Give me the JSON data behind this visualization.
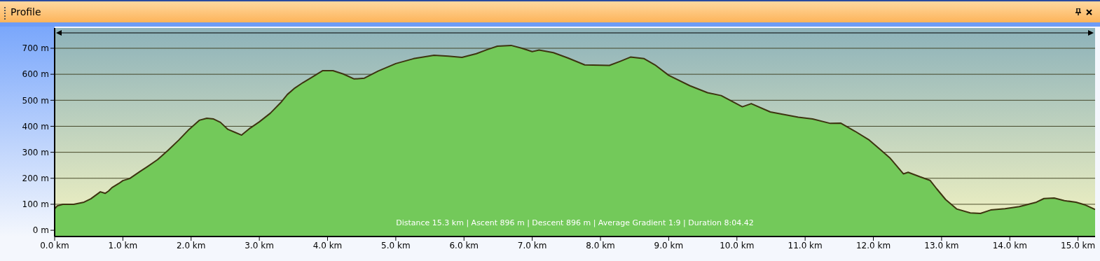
{
  "chart_data": {
    "type": "area",
    "title": "Profile",
    "annotations": [
      "Distance 15.3 km | Ascent 896 m | Descent 896 m | Average Gradient 1:9 | Duration 8:04.42"
    ],
    "x": [
      0,
      0.04,
      0.12,
      0.28,
      0.43,
      0.53,
      0.67,
      0.74,
      0.79,
      0.84,
      0.94,
      1.0,
      1.1,
      1.25,
      1.36,
      1.51,
      1.66,
      1.82,
      1.97,
      2.12,
      2.23,
      2.33,
      2.43,
      2.54,
      2.64,
      2.74,
      2.85,
      3.0,
      3.16,
      3.31,
      3.41,
      3.52,
      3.64,
      3.78,
      3.93,
      4.08,
      4.23,
      4.39,
      4.54,
      4.74,
      5.0,
      5.26,
      5.56,
      5.77,
      5.97,
      6.18,
      6.34,
      6.49,
      6.69,
      6.85,
      7.0,
      7.1,
      7.31,
      7.52,
      7.77,
      8.13,
      8.29,
      8.44,
      8.64,
      8.8,
      9.0,
      9.31,
      9.57,
      9.77,
      10.08,
      10.21,
      10.49,
      10.9,
      11.11,
      11.37,
      11.52,
      11.73,
      11.94,
      12.09,
      12.24,
      12.44,
      12.51,
      12.68,
      12.83,
      12.93,
      13.06,
      13.22,
      13.42,
      13.57,
      13.72,
      13.93,
      14.14,
      14.39,
      14.5,
      14.65,
      14.8,
      14.97,
      15.11,
      15.25
    ],
    "series": [
      {
        "color": "#73c95a",
        "values": [
          83,
          94,
          100,
          100,
          108,
          121,
          148,
          142,
          151,
          164,
          180,
          191,
          199,
          226,
          245,
          272,
          307,
          347,
          388,
          423,
          431,
          428,
          415,
          388,
          377,
          366,
          390,
          417,
          450,
          490,
          522,
          547,
          568,
          590,
          614,
          614,
          601,
          582,
          585,
          612,
          641,
          660,
          673,
          670,
          665,
          679,
          695,
          708,
          711,
          700,
          687,
          693,
          683,
          663,
          636,
          634,
          650,
          666,
          660,
          636,
          596,
          556,
          529,
          518,
          475,
          487,
          455,
          435,
          428,
          411,
          412,
          381,
          347,
          313,
          279,
          217,
          223,
          206,
          192,
          159,
          118,
          82,
          67,
          65,
          78,
          83,
          91,
          108,
          122,
          124,
          114,
          108,
          97,
          80
        ]
      }
    ],
    "xlim": [
      0,
      15.25
    ],
    "xticks": [
      {
        "value": 0,
        "label": "0.0 km"
      },
      {
        "value": 1,
        "label": "1.0 km"
      },
      {
        "value": 2,
        "label": "2.0 km"
      },
      {
        "value": 3,
        "label": "3.0 km"
      },
      {
        "value": 4,
        "label": "4.0 km"
      },
      {
        "value": 5,
        "label": "5.0 km"
      },
      {
        "value": 6,
        "label": "6.0 km"
      },
      {
        "value": 7,
        "label": "7.0 km"
      },
      {
        "value": 8,
        "label": "8.0 km"
      },
      {
        "value": 9,
        "label": "9.0 km"
      },
      {
        "value": 10,
        "label": "10.0 km"
      },
      {
        "value": 11,
        "label": "11.0 km"
      },
      {
        "value": 12,
        "label": "12.0 km"
      },
      {
        "value": 13,
        "label": "13.0 km"
      },
      {
        "value": 14,
        "label": "14.0 km"
      },
      {
        "value": 15,
        "label": "15.0 km"
      }
    ],
    "ylim": [
      -24,
      778
    ],
    "yticks": [
      {
        "value": 0,
        "label": "0 m"
      },
      {
        "value": 100,
        "label": "100 m"
      },
      {
        "value": 200,
        "label": "200 m"
      },
      {
        "value": 300,
        "label": "300 m"
      },
      {
        "value": 400,
        "label": "400 m"
      },
      {
        "value": 500,
        "label": "500 m"
      },
      {
        "value": 600,
        "label": "600 m"
      },
      {
        "value": 700,
        "label": "700 m"
      }
    ],
    "grid": "y",
    "marker": "none",
    "line_style": "solid"
  }
}
